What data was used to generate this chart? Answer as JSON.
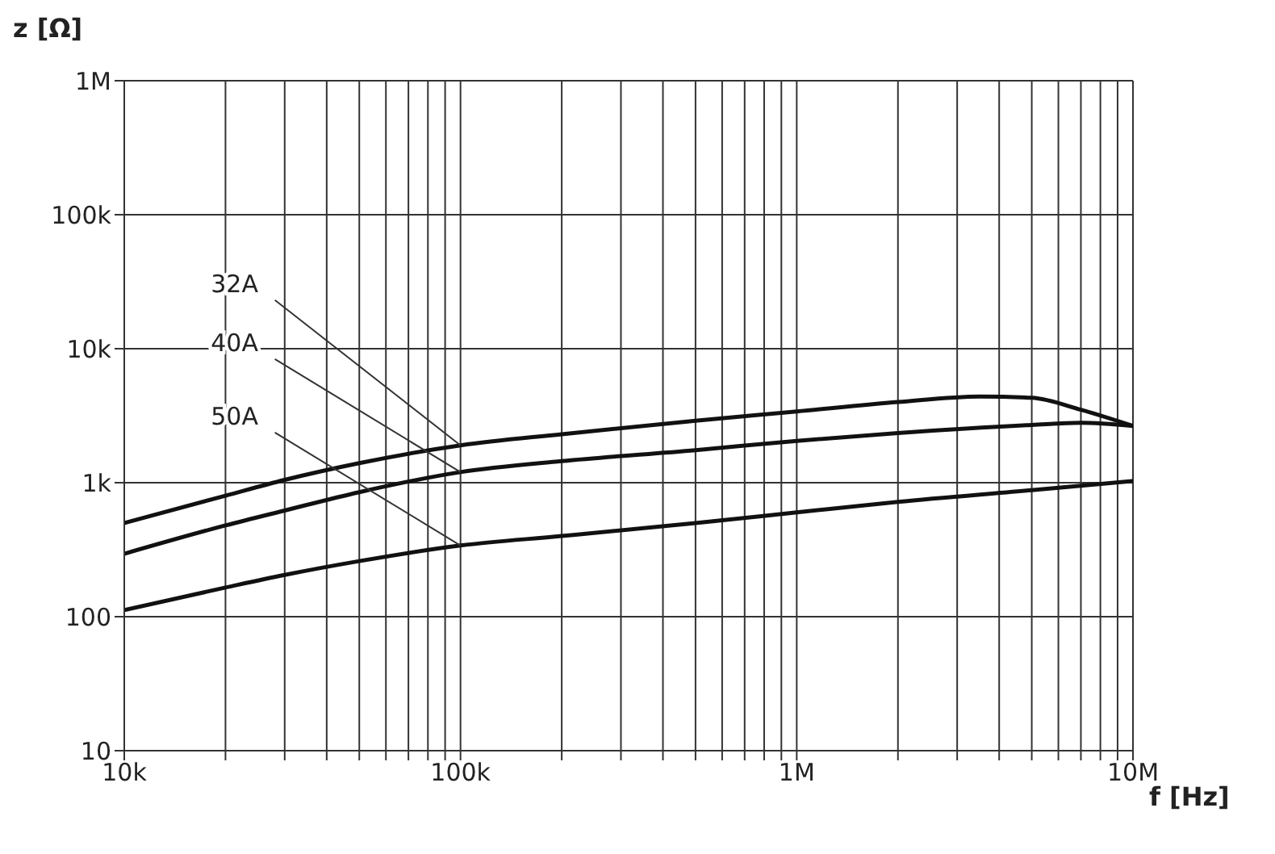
{
  "chart_data": {
    "type": "line",
    "xlabel": "f [Hz]",
    "ylabel": "z [Ω]",
    "log": "xy",
    "grid": true,
    "xlim": [
      10000,
      10000000
    ],
    "xticks": [
      {
        "value": 10000,
        "label": "10k"
      },
      {
        "value": 20000,
        "label": null
      },
      {
        "value": 30000,
        "label": null
      },
      {
        "value": 40000,
        "label": null
      },
      {
        "value": 50000,
        "label": null
      },
      {
        "value": 60000,
        "label": null
      },
      {
        "value": 70000,
        "label": null
      },
      {
        "value": 80000,
        "label": null
      },
      {
        "value": 90000,
        "label": null
      },
      {
        "value": 100000,
        "label": "100k"
      },
      {
        "value": 200000,
        "label": null
      },
      {
        "value": 300000,
        "label": null
      },
      {
        "value": 400000,
        "label": null
      },
      {
        "value": 500000,
        "label": null
      },
      {
        "value": 600000,
        "label": null
      },
      {
        "value": 700000,
        "label": null
      },
      {
        "value": 800000,
        "label": null
      },
      {
        "value": 900000,
        "label": null
      },
      {
        "value": 1000000,
        "label": "1M"
      },
      {
        "value": 2000000,
        "label": null
      },
      {
        "value": 3000000,
        "label": null
      },
      {
        "value": 4000000,
        "label": null
      },
      {
        "value": 5000000,
        "label": null
      },
      {
        "value": 6000000,
        "label": null
      },
      {
        "value": 7000000,
        "label": null
      },
      {
        "value": 8000000,
        "label": null
      },
      {
        "value": 9000000,
        "label": null
      },
      {
        "value": 10000000,
        "label": "10M"
      }
    ],
    "ylim": [
      10,
      1000000
    ],
    "yticks": [
      10,
      100,
      {
        "value": 1000,
        "label": "1k"
      },
      {
        "value": 10000,
        "label": "10k"
      },
      {
        "value": 100000,
        "label": "100k"
      },
      {
        "value": 1000000,
        "label": "1M"
      }
    ],
    "marker": "none",
    "line_style": "solid",
    "series": [
      {
        "name": "32A",
        "color": "#111111",
        "x": [
          10000,
          20000,
          30000,
          50000,
          100000,
          200000,
          500000,
          1000000,
          2000000,
          3500000,
          5000000,
          7000000,
          10000000
        ],
        "values": [
          500,
          800,
          1050,
          1400,
          1900,
          2300,
          2900,
          3400,
          4000,
          4400,
          4300,
          3500,
          2650
        ]
      },
      {
        "name": "40A",
        "color": "#111111",
        "x": [
          10000,
          20000,
          30000,
          50000,
          100000,
          200000,
          500000,
          1000000,
          2000000,
          5000000,
          7000000,
          10000000
        ],
        "values": [
          295,
          480,
          620,
          850,
          1200,
          1450,
          1750,
          2050,
          2350,
          2700,
          2800,
          2650
        ]
      },
      {
        "name": "50A",
        "color": "#111111",
        "x": [
          10000,
          20000,
          30000,
          50000,
          100000,
          200000,
          500000,
          1000000,
          2000000,
          5000000,
          10000000
        ],
        "values": [
          112,
          165,
          205,
          260,
          340,
          400,
          500,
          600,
          720,
          880,
          1030
        ]
      }
    ]
  }
}
